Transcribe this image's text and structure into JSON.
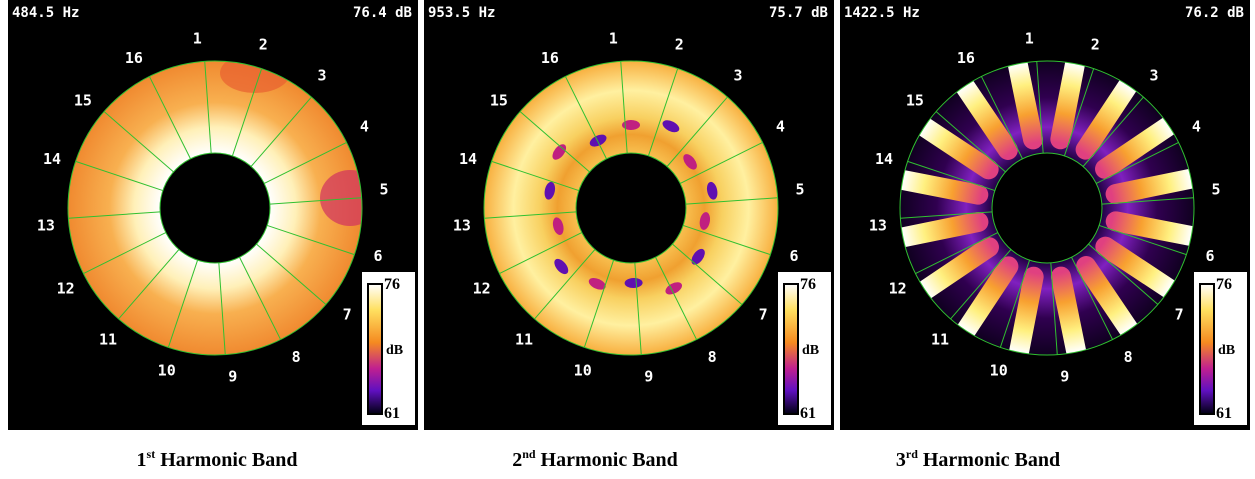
{
  "panels": [
    {
      "frequency": "484.5 Hz",
      "level": "76.4 dB",
      "scale_max": "76",
      "scale_unit": "dB",
      "scale_min": "61",
      "caption": {
        "number": "1",
        "suffix": "st",
        "text": "Harmonic Band"
      }
    },
    {
      "frequency": "953.5 Hz",
      "level": "75.7 dB",
      "scale_max": "76",
      "scale_unit": "dB",
      "scale_min": "61",
      "caption": {
        "number": "2",
        "suffix": "nd",
        "text": "Harmonic Band"
      }
    },
    {
      "frequency": "1422.5 Hz",
      "level": "76.2 dB",
      "scale_max": "76",
      "scale_unit": "dB",
      "scale_min": "61",
      "caption": {
        "number": "3",
        "suffix": "rd",
        "text": "Harmonic Band"
      }
    }
  ],
  "sensors": [
    "1",
    "2",
    "3",
    "4",
    "5",
    "6",
    "7",
    "8",
    "9",
    "10",
    "11",
    "12",
    "13",
    "14",
    "15",
    "16"
  ]
}
